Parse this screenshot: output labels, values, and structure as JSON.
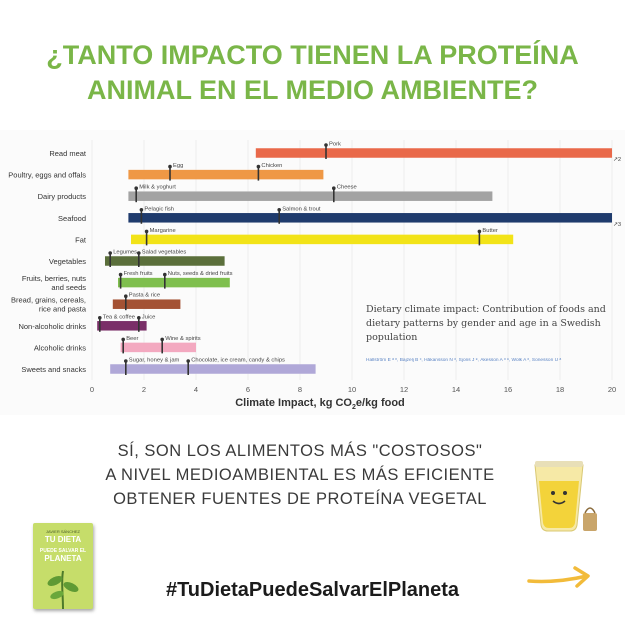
{
  "headline": {
    "line1": "¿TANTO IMPACTO TIENEN LA PROTEÍNA",
    "line2": "ANIMAL EN EL MEDIO AMBIENTE?"
  },
  "chart_data": {
    "type": "bar",
    "orientation": "horizontal",
    "xlabel": "Climate Impact, kg CO2e/kg food",
    "xlabel_parts": {
      "pre": "Climate Impact, kg CO",
      "sub": "2",
      "post": "e/kg food"
    },
    "xlim": [
      0,
      20
    ],
    "xticks": [
      0,
      2,
      4,
      6,
      8,
      10,
      12,
      14,
      16,
      18,
      20
    ],
    "categories": [
      {
        "label": [
          "Read meat"
        ],
        "range": [
          6.3,
          20
        ],
        "color": "#e9694a",
        "overflow": "↗2",
        "markers": [
          {
            "value": 9.0,
            "label": "Pork"
          }
        ]
      },
      {
        "label": [
          "Poultry, eggs and offals"
        ],
        "range": [
          1.4,
          8.9
        ],
        "color": "#ef9845",
        "markers": [
          {
            "value": 3.0,
            "label": "Egg"
          },
          {
            "value": 6.4,
            "label": "Chicken"
          }
        ]
      },
      {
        "label": [
          "Dairy products"
        ],
        "range": [
          1.4,
          15.4
        ],
        "color": "#a3a3a3",
        "markers": [
          {
            "value": 1.7,
            "label": "Milk & yoghurt"
          },
          {
            "value": 9.3,
            "label": "Cheese"
          }
        ]
      },
      {
        "label": [
          "Seafood"
        ],
        "range": [
          1.4,
          20
        ],
        "color": "#1f3b6d",
        "overflow": "↗3",
        "markers": [
          {
            "value": 1.9,
            "label": "Pelagic fish"
          },
          {
            "value": 7.2,
            "label": "Salmon & trout"
          }
        ]
      },
      {
        "label": [
          "Fat"
        ],
        "range": [
          1.5,
          16.2
        ],
        "color": "#f2e318",
        "markers": [
          {
            "value": 2.1,
            "label": "Margarine"
          },
          {
            "value": 14.9,
            "label": "Butter"
          }
        ]
      },
      {
        "label": [
          "Vegetables"
        ],
        "range": [
          0.5,
          5.1
        ],
        "color": "#5b6f3b",
        "markers": [
          {
            "value": 0.7,
            "label": "Legumes"
          },
          {
            "value": 1.8,
            "label": "Salad vegetables"
          }
        ]
      },
      {
        "label": [
          "Fruits, berries, nuts",
          "and seeds"
        ],
        "range": [
          1.0,
          5.3
        ],
        "color": "#7fbf4e",
        "markers": [
          {
            "value": 1.1,
            "label": "Fresh fruits"
          },
          {
            "value": 2.8,
            "label": "Nuts, seeds & dried fruits"
          }
        ]
      },
      {
        "label": [
          "Bread, grains, cereals,",
          "rice and pasta"
        ],
        "range": [
          0.8,
          3.4
        ],
        "color": "#a45234",
        "markers": [
          {
            "value": 1.3,
            "label": "Pasta & rice"
          }
        ]
      },
      {
        "label": [
          "Non-alcoholic drinks"
        ],
        "range": [
          0.2,
          2.1
        ],
        "color": "#7a2f68",
        "markers": [
          {
            "value": 0.3,
            "label": "Tea & coffee"
          },
          {
            "value": 1.8,
            "label": "Juice"
          }
        ]
      },
      {
        "label": [
          "Alcoholic drinks"
        ],
        "range": [
          1.1,
          4.0
        ],
        "color": "#f3a9c0",
        "markers": [
          {
            "value": 1.2,
            "label": "Beer"
          },
          {
            "value": 2.7,
            "label": "Wine & spirits"
          }
        ]
      },
      {
        "label": [
          "Sweets and snacks"
        ],
        "range": [
          0.7,
          8.6
        ],
        "color": "#b0a8d8",
        "markers": [
          {
            "value": 1.3,
            "label": "Sugar, honey  & jam"
          },
          {
            "value": 3.7,
            "label": "Chocolate, ice cream,  candy & chips"
          }
        ]
      }
    ]
  },
  "note": {
    "text": "Dietary climate impact: Contribution of foods and dietary patterns by gender and age in a Swedish population",
    "authors": "Hallström E ᵃ ᵇ, Bajzelj B ᶜ, Håkansson N ᵈ, Sjons J ᵉ, Åkesson A ᵈ ᵉ, Wolk A ᵈ, Sonesson U ᵃ"
  },
  "subtext": {
    "line1": "SÍ, SON LOS ALIMENTOS MÁS \"COSTOSOS\"",
    "line2": "A NIVEL MEDIOAMBIENTAL ES MÁS EFICIENTE",
    "line3": "OBTENER FUENTES DE PROTEÍNA VEGETAL"
  },
  "book": {
    "author": "JAVIER SÁNCHEZ",
    "title_line1": "TU DIETA",
    "title_line2": "PUEDE SALVAR EL",
    "title_line3": "PLANETA"
  },
  "hashtag": "#TuDietaPuedeSalvarElPlaneta"
}
